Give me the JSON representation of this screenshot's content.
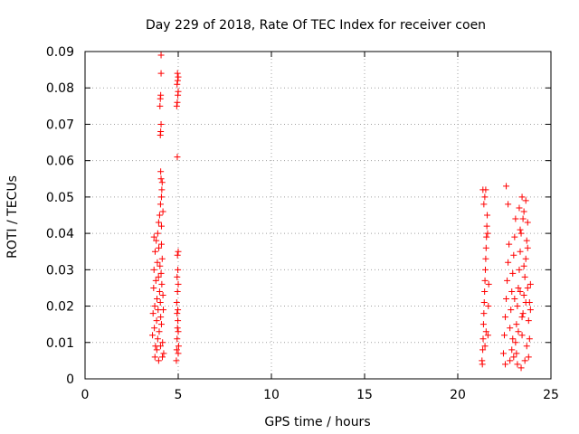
{
  "chart_data": {
    "type": "scatter",
    "title": "Day 229 of 2018, Rate Of TEC Index for receiver coen",
    "xlabel": "GPS time / hours",
    "ylabel": "ROTI / TECUs",
    "xlim": [
      0,
      25
    ],
    "ylim": [
      0,
      0.09
    ],
    "x_ticks": [
      "0",
      "5",
      "10",
      "15",
      "20",
      "25"
    ],
    "y_ticks": [
      "0",
      "0.01",
      "0.02",
      "0.03",
      "0.04",
      "0.05",
      "0.06",
      "0.07",
      "0.08",
      "0.09"
    ],
    "grid": true,
    "legend": "none",
    "marker": "+",
    "color": "#ff0000",
    "points": [
      [
        3.62,
        0.012
      ],
      [
        3.65,
        0.018
      ],
      [
        3.68,
        0.025
      ],
      [
        3.7,
        0.03
      ],
      [
        3.72,
        0.014
      ],
      [
        3.74,
        0.02
      ],
      [
        3.76,
        0.035
      ],
      [
        3.78,
        0.009
      ],
      [
        3.8,
        0.027
      ],
      [
        3.82,
        0.038
      ],
      [
        3.84,
        0.016
      ],
      [
        3.86,
        0.022
      ],
      [
        3.88,
        0.032
      ],
      [
        3.9,
        0.011
      ],
      [
        3.92,
        0.019
      ],
      [
        3.94,
        0.028
      ],
      [
        3.96,
        0.036
      ],
      [
        3.98,
        0.013
      ],
      [
        4.0,
        0.024
      ],
      [
        4.02,
        0.031
      ],
      [
        4.04,
        0.021
      ],
      [
        4.06,
        0.017
      ],
      [
        4.08,
        0.029
      ],
      [
        4.1,
        0.015
      ],
      [
        4.12,
        0.026
      ],
      [
        4.14,
        0.033
      ],
      [
        4.16,
        0.01
      ],
      [
        4.18,
        0.023
      ],
      [
        4.2,
        0.019
      ],
      [
        4.22,
        0.007
      ],
      [
        3.75,
        0.006
      ],
      [
        3.85,
        0.008
      ],
      [
        3.95,
        0.005
      ],
      [
        4.05,
        0.009
      ],
      [
        4.15,
        0.006
      ],
      [
        3.7,
        0.039
      ],
      [
        3.9,
        0.04
      ],
      [
        4.1,
        0.037
      ],
      [
        3.95,
        0.043
      ],
      [
        4.0,
        0.045
      ],
      [
        4.05,
        0.048
      ],
      [
        4.1,
        0.05
      ],
      [
        4.12,
        0.052
      ],
      [
        4.08,
        0.055
      ],
      [
        4.06,
        0.057
      ],
      [
        4.14,
        0.054
      ],
      [
        4.1,
        0.042
      ],
      [
        4.18,
        0.046
      ],
      [
        4.04,
        0.067
      ],
      [
        4.06,
        0.068
      ],
      [
        4.08,
        0.07
      ],
      [
        4.02,
        0.075
      ],
      [
        4.04,
        0.077
      ],
      [
        4.06,
        0.078
      ],
      [
        4.08,
        0.084
      ],
      [
        4.08,
        0.089
      ],
      [
        4.9,
        0.005
      ],
      [
        4.92,
        0.008
      ],
      [
        4.94,
        0.011
      ],
      [
        4.96,
        0.014
      ],
      [
        4.98,
        0.016
      ],
      [
        5.0,
        0.013
      ],
      [
        5.02,
        0.009
      ],
      [
        4.94,
        0.018
      ],
      [
        4.98,
        0.019
      ],
      [
        5.0,
        0.007
      ],
      [
        4.92,
        0.021
      ],
      [
        4.96,
        0.024
      ],
      [
        5.0,
        0.026
      ],
      [
        4.94,
        0.028
      ],
      [
        4.98,
        0.03
      ],
      [
        4.96,
        0.034
      ],
      [
        5.0,
        0.035
      ],
      [
        4.95,
        0.061
      ],
      [
        4.92,
        0.075
      ],
      [
        4.95,
        0.076
      ],
      [
        4.98,
        0.078
      ],
      [
        5.0,
        0.079
      ],
      [
        4.94,
        0.081
      ],
      [
        4.97,
        0.082
      ],
      [
        5.0,
        0.083
      ],
      [
        4.96,
        0.084
      ],
      [
        21.3,
        0.005
      ],
      [
        21.32,
        0.004
      ],
      [
        21.34,
        0.008
      ],
      [
        21.36,
        0.011
      ],
      [
        21.38,
        0.015
      ],
      [
        21.4,
        0.018
      ],
      [
        21.42,
        0.021
      ],
      [
        21.44,
        0.024
      ],
      [
        21.46,
        0.027
      ],
      [
        21.48,
        0.03
      ],
      [
        21.5,
        0.033
      ],
      [
        21.52,
        0.036
      ],
      [
        21.54,
        0.039
      ],
      [
        21.56,
        0.042
      ],
      [
        21.58,
        0.045
      ],
      [
        21.4,
        0.048
      ],
      [
        21.45,
        0.05
      ],
      [
        21.5,
        0.052
      ],
      [
        21.35,
        0.052
      ],
      [
        21.6,
        0.04
      ],
      [
        21.62,
        0.012
      ],
      [
        21.64,
        0.02
      ],
      [
        21.66,
        0.026
      ],
      [
        21.46,
        0.009
      ],
      [
        21.52,
        0.013
      ],
      [
        22.45,
        0.007
      ],
      [
        22.5,
        0.012
      ],
      [
        22.55,
        0.017
      ],
      [
        22.6,
        0.022
      ],
      [
        22.65,
        0.027
      ],
      [
        22.7,
        0.032
      ],
      [
        22.75,
        0.037
      ],
      [
        22.8,
        0.014
      ],
      [
        22.85,
        0.019
      ],
      [
        22.9,
        0.024
      ],
      [
        22.95,
        0.029
      ],
      [
        23.0,
        0.034
      ],
      [
        23.05,
        0.039
      ],
      [
        23.1,
        0.01
      ],
      [
        23.15,
        0.015
      ],
      [
        23.2,
        0.02
      ],
      [
        23.25,
        0.025
      ],
      [
        23.3,
        0.03
      ],
      [
        23.35,
        0.035
      ],
      [
        23.4,
        0.04
      ],
      [
        23.45,
        0.012
      ],
      [
        23.5,
        0.018
      ],
      [
        23.55,
        0.023
      ],
      [
        23.6,
        0.028
      ],
      [
        23.65,
        0.033
      ],
      [
        23.7,
        0.038
      ],
      [
        23.75,
        0.043
      ],
      [
        23.8,
        0.016
      ],
      [
        23.85,
        0.021
      ],
      [
        23.9,
        0.026
      ],
      [
        22.6,
        0.053
      ],
      [
        22.7,
        0.048
      ],
      [
        23.1,
        0.044
      ],
      [
        23.3,
        0.047
      ],
      [
        23.45,
        0.05
      ],
      [
        23.55,
        0.046
      ],
      [
        23.65,
        0.049
      ],
      [
        23.35,
        0.041
      ],
      [
        23.5,
        0.044
      ],
      [
        23.75,
        0.036
      ],
      [
        22.55,
        0.004
      ],
      [
        22.8,
        0.005
      ],
      [
        23.0,
        0.006
      ],
      [
        23.2,
        0.004
      ],
      [
        23.4,
        0.003
      ],
      [
        23.6,
        0.005
      ],
      [
        23.8,
        0.006
      ],
      [
        22.9,
        0.008
      ],
      [
        23.15,
        0.007
      ],
      [
        23.7,
        0.009
      ],
      [
        23.25,
        0.013
      ],
      [
        23.45,
        0.017
      ],
      [
        23.65,
        0.021
      ],
      [
        23.85,
        0.011
      ],
      [
        23.05,
        0.022
      ],
      [
        22.95,
        0.011
      ],
      [
        23.35,
        0.024
      ],
      [
        23.55,
        0.031
      ],
      [
        23.75,
        0.025
      ],
      [
        23.9,
        0.019
      ]
    ]
  }
}
